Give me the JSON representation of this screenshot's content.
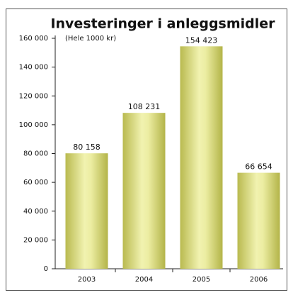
{
  "chart_data": {
    "type": "bar",
    "title": "Investeringer i anleggsmidler",
    "subtitle": "(Hele 1000 kr)",
    "categories": [
      "2003",
      "2004",
      "2005",
      "2006"
    ],
    "values": [
      80158,
      108231,
      154423,
      66654
    ],
    "value_labels": [
      "80 158",
      "108 231",
      "154 423",
      "66 654"
    ],
    "color": "#d6d77a",
    "ylim": [
      0,
      160000
    ],
    "yticks": [
      0,
      {
        "value": 20000,
        "label": "20 000"
      },
      {
        "value": 40000,
        "label": "40 000"
      },
      {
        "value": 60000,
        "label": "60 000"
      },
      {
        "value": 80000,
        "label": "80 000"
      },
      {
        "value": 100000,
        "label": "100 000"
      },
      {
        "value": 120000,
        "label": "120 000"
      },
      {
        "value": 140000,
        "label": "140 000"
      },
      {
        "value": 160000,
        "label": "160 000"
      }
    ],
    "grid": false
  }
}
